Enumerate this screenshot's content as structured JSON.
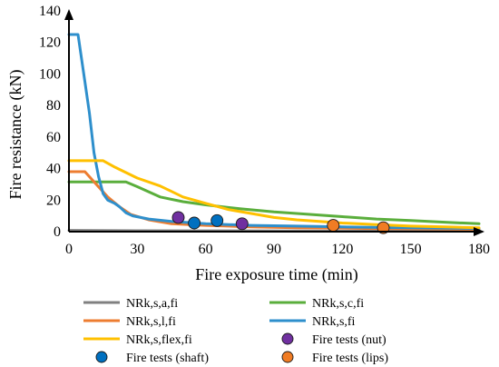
{
  "chart_data": {
    "type": "line",
    "xlabel": "Fire exposure time (min)",
    "ylabel": "Fire resistance (kN)",
    "xlim": [
      0,
      180
    ],
    "ylim": [
      0,
      140
    ],
    "xticks": [
      "0",
      "30",
      "60",
      "90",
      "120",
      "150",
      "180"
    ],
    "yticks": [
      "0",
      "20",
      "40",
      "60",
      "80",
      "100",
      "120",
      "140"
    ],
    "grid": false,
    "legend_position": "bottom",
    "series": [
      {
        "name": "NRk,s,a,fi",
        "color": "#808080",
        "points": [
          [
            0,
            0.8
          ],
          [
            30,
            0.6
          ],
          [
            60,
            0.5
          ],
          [
            90,
            0.4
          ],
          [
            120,
            0.3
          ],
          [
            150,
            0.3
          ],
          [
            180,
            0.3
          ]
        ]
      },
      {
        "name": "NRk,s,c,fi",
        "color": "#5aae3c",
        "points": [
          [
            0,
            31.5
          ],
          [
            13,
            31.5
          ],
          [
            25,
            31.5
          ],
          [
            30,
            28.5
          ],
          [
            40,
            22
          ],
          [
            50,
            19
          ],
          [
            60,
            17
          ],
          [
            75,
            14.5
          ],
          [
            90,
            12.5
          ],
          [
            105,
            11
          ],
          [
            120,
            9.5
          ],
          [
            135,
            8
          ],
          [
            150,
            7
          ],
          [
            165,
            6
          ],
          [
            180,
            5
          ]
        ]
      },
      {
        "name": "NRk,s,l,fi",
        "color": "#ed7d31",
        "points": [
          [
            0,
            38
          ],
          [
            7,
            38
          ],
          [
            12,
            30
          ],
          [
            17,
            22
          ],
          [
            22,
            16
          ],
          [
            27,
            11
          ],
          [
            35,
            7.5
          ],
          [
            45,
            5
          ],
          [
            60,
            4
          ],
          [
            80,
            3
          ],
          [
            100,
            2.5
          ],
          [
            130,
            2
          ],
          [
            180,
            1.5
          ]
        ]
      },
      {
        "name": "NRk,s,fi",
        "color": "#2e8fcc",
        "points": [
          [
            0,
            125
          ],
          [
            4,
            125
          ],
          [
            7,
            95
          ],
          [
            9,
            75
          ],
          [
            11,
            50
          ],
          [
            13,
            35
          ],
          [
            15,
            24
          ],
          [
            17,
            20
          ],
          [
            20,
            18
          ],
          [
            22,
            16
          ],
          [
            25,
            12
          ],
          [
            28,
            10
          ],
          [
            35,
            8
          ],
          [
            45,
            6.5
          ],
          [
            60,
            5
          ],
          [
            80,
            4
          ],
          [
            100,
            3.5
          ],
          [
            120,
            3
          ],
          [
            150,
            2.5
          ],
          [
            180,
            2
          ]
        ]
      },
      {
        "name": "NRk,s,flex,fi",
        "color": "#ffc000",
        "points": [
          [
            0,
            45
          ],
          [
            15,
            45
          ],
          [
            20,
            41
          ],
          [
            30,
            34
          ],
          [
            40,
            29
          ],
          [
            45,
            25.5
          ],
          [
            50,
            22
          ],
          [
            60,
            18
          ],
          [
            70,
            14
          ],
          [
            80,
            11.5
          ],
          [
            90,
            9
          ],
          [
            100,
            7.5
          ],
          [
            110,
            6.5
          ],
          [
            120,
            5.5
          ],
          [
            135,
            4.5
          ],
          [
            150,
            3.5
          ],
          [
            165,
            3
          ],
          [
            180,
            2.5
          ]
        ]
      }
    ],
    "markers": [
      {
        "name": "Fire tests (nut)",
        "color": "#7030a0",
        "points": [
          [
            48,
            9
          ],
          [
            76,
            5
          ]
        ]
      },
      {
        "name": "Fire tests (shaft)",
        "color": "#0070c0",
        "points": [
          [
            55,
            5.5
          ],
          [
            65,
            7
          ]
        ]
      },
      {
        "name": "Fire tests (lips)",
        "color": "#f07c24",
        "points": [
          [
            116,
            4
          ],
          [
            138,
            2.5
          ]
        ]
      }
    ]
  }
}
